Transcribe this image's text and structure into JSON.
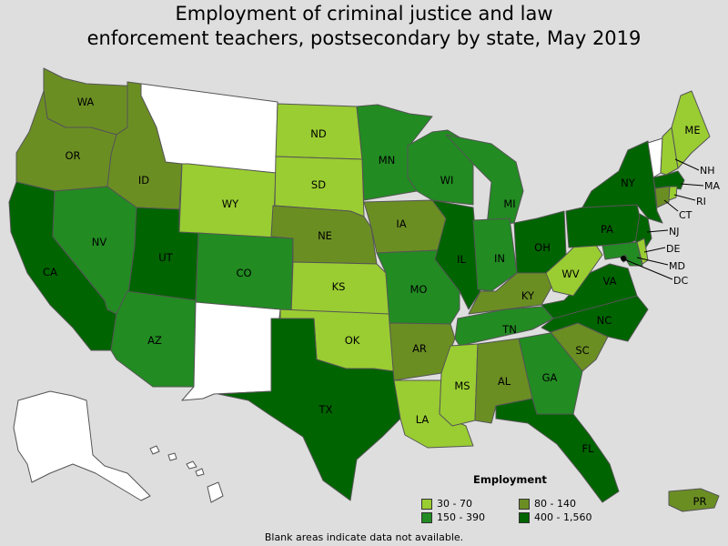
{
  "title_line1": "Employment of criminal justice and law",
  "title_line2": "enforcement teachers, postsecondary by state, May 2019",
  "legend": {
    "title": "Employment",
    "items": [
      {
        "label": "30 - 70",
        "color": "#9acd32"
      },
      {
        "label": "80 - 140",
        "color": "#6b8e23"
      },
      {
        "label": "150 - 390",
        "color": "#228b22"
      },
      {
        "label": "400 - 1,560",
        "color": "#006400"
      }
    ]
  },
  "footnote": "Blank areas indicate data not available.",
  "colors": {
    "nodata": "#ffffff",
    "bin1": "#9acd32",
    "bin2": "#6b8e23",
    "bin3": "#228b22",
    "bin4": "#006400",
    "border": "#555555"
  },
  "states": {
    "WA": {
      "label": "WA",
      "bin": "80 - 140"
    },
    "OR": {
      "label": "OR",
      "bin": "80 - 140"
    },
    "CA": {
      "label": "CA",
      "bin": "400 - 1,560"
    },
    "ID": {
      "label": "ID",
      "bin": "80 - 140"
    },
    "NV": {
      "label": "NV",
      "bin": "150 - 390"
    },
    "UT": {
      "label": "UT",
      "bin": "400 - 1,560"
    },
    "AZ": {
      "label": "AZ",
      "bin": "150 - 390"
    },
    "MT": {
      "label": "",
      "bin": "no data"
    },
    "WY": {
      "label": "WY",
      "bin": "30 - 70"
    },
    "CO": {
      "label": "CO",
      "bin": "150 - 390"
    },
    "NM": {
      "label": "",
      "bin": "no data"
    },
    "ND": {
      "label": "ND",
      "bin": "30 - 70"
    },
    "SD": {
      "label": "SD",
      "bin": "30 - 70"
    },
    "NE": {
      "label": "NE",
      "bin": "80 - 140"
    },
    "KS": {
      "label": "KS",
      "bin": "30 - 70"
    },
    "OK": {
      "label": "OK",
      "bin": "30 - 70"
    },
    "TX": {
      "label": "TX",
      "bin": "400 - 1,560"
    },
    "MN": {
      "label": "MN",
      "bin": "150 - 390"
    },
    "IA": {
      "label": "IA",
      "bin": "80 - 140"
    },
    "MO": {
      "label": "MO",
      "bin": "150 - 390"
    },
    "AR": {
      "label": "AR",
      "bin": "80 - 140"
    },
    "LA": {
      "label": "LA",
      "bin": "30 - 70"
    },
    "WI": {
      "label": "WI",
      "bin": "150 - 390"
    },
    "IL": {
      "label": "IL",
      "bin": "400 - 1,560"
    },
    "MI": {
      "label": "MI",
      "bin": "150 - 390"
    },
    "IN": {
      "label": "IN",
      "bin": "150 - 390"
    },
    "OH": {
      "label": "OH",
      "bin": "400 - 1,560"
    },
    "KY": {
      "label": "KY",
      "bin": "80 - 140"
    },
    "TN": {
      "label": "TN",
      "bin": "150 - 390"
    },
    "MS": {
      "label": "MS",
      "bin": "30 - 70"
    },
    "AL": {
      "label": "AL",
      "bin": "80 - 140"
    },
    "GA": {
      "label": "GA",
      "bin": "150 - 390"
    },
    "FL": {
      "label": "FL",
      "bin": "400 - 1,560"
    },
    "SC": {
      "label": "SC",
      "bin": "80 - 140"
    },
    "NC": {
      "label": "NC",
      "bin": "400 - 1,560"
    },
    "VA": {
      "label": "VA",
      "bin": "400 - 1,560"
    },
    "WV": {
      "label": "WV",
      "bin": "30 - 70"
    },
    "PA": {
      "label": "PA",
      "bin": "400 - 1,560"
    },
    "NY": {
      "label": "NY",
      "bin": "400 - 1,560"
    },
    "VT": {
      "label": "",
      "bin": "no data"
    },
    "NH": {
      "label": "NH",
      "bin": "30 - 70"
    },
    "ME": {
      "label": "ME",
      "bin": "30 - 70"
    },
    "MA": {
      "label": "MA",
      "bin": "400 - 1,560"
    },
    "RI": {
      "label": "RI",
      "bin": "30 - 70"
    },
    "CT": {
      "label": "CT",
      "bin": "80 - 140"
    },
    "NJ": {
      "label": "NJ",
      "bin": "400 - 1,560"
    },
    "DE": {
      "label": "DE",
      "bin": "30 - 70"
    },
    "MD": {
      "label": "MD",
      "bin": "150 - 390"
    },
    "DC": {
      "label": "DC",
      "bin": "400 - 1,560"
    },
    "AK": {
      "label": "",
      "bin": "no data"
    },
    "HI": {
      "label": "",
      "bin": "no data"
    },
    "PR": {
      "label": "PR",
      "bin": "80 - 140"
    }
  }
}
